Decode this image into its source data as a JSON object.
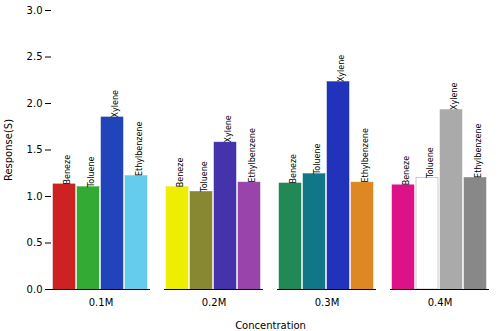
{
  "chart_data": {
    "type": "bar",
    "xlabel": "Concentration",
    "ylabel": "Response(S)",
    "categories": [
      "0.1M",
      "0.2M",
      "0.3M",
      "0.4M"
    ],
    "series": [
      {
        "name": "Beneze",
        "colors": [
          "#cc2222",
          "#eeee00",
          "#228855",
          "#dd1188"
        ],
        "values": [
          1.13,
          1.1,
          1.14,
          1.12
        ]
      },
      {
        "name": "Toluene",
        "colors": [
          "#33aa33",
          "#888833",
          "#117788",
          "#ffffff"
        ],
        "values": [
          1.1,
          1.05,
          1.24,
          1.2
        ]
      },
      {
        "name": "Xylene",
        "colors": [
          "#2244bb",
          "#4433aa",
          "#2233bb",
          "#aaaaaa"
        ],
        "values": [
          1.85,
          1.58,
          2.23,
          1.93
        ]
      },
      {
        "name": "Ethylbenzene",
        "colors": [
          "#66ccee",
          "#9944aa",
          "#dd8822",
          "#888888"
        ],
        "values": [
          1.22,
          1.15,
          1.15,
          1.2
        ]
      }
    ],
    "ylim": [
      0.0,
      3.0
    ],
    "yticks": [
      {
        "value": 0,
        "label": "0.0"
      },
      0.5,
      {
        "value": 1,
        "label": "1.0"
      },
      1.5,
      {
        "value": 2,
        "label": "2.0"
      },
      2.5,
      {
        "value": 3,
        "label": "3.0"
      }
    ],
    "grid": false
  }
}
